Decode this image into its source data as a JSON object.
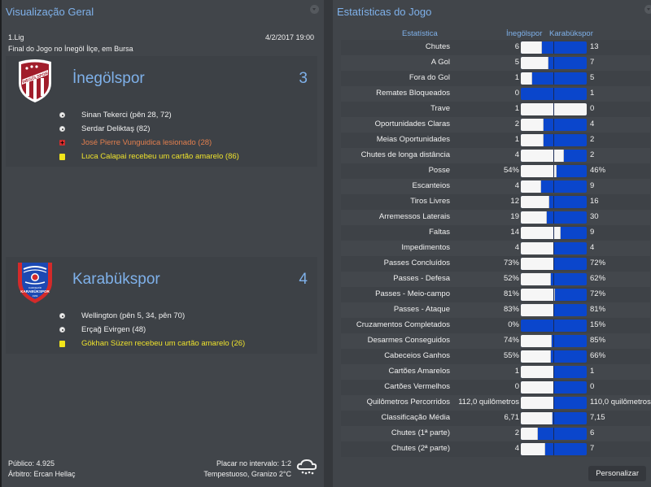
{
  "overview": {
    "title": "Visualização Geral",
    "competition": "1.Lig",
    "datetime": "4/2/2017 19:00",
    "venue_text": "Final do Jogo no İnegöl İlçe, em Bursa",
    "home": {
      "name": "İnegölspor",
      "score": "3",
      "crest_colors": {
        "primary": "#a11d2b",
        "secondary": "#ffffff"
      },
      "events": [
        {
          "type": "goal",
          "icon": "ball-icon",
          "text": "Sinan Tekerci (pên 28, 72)"
        },
        {
          "type": "goal",
          "icon": "ball-icon",
          "text": "Serdar Deliktaş (82)"
        },
        {
          "type": "injury",
          "icon": "injury-icon",
          "text": "José Pierre Vunguidica lesionado (28)"
        },
        {
          "type": "card",
          "icon": "yellow-card-icon",
          "text": "Luca Calapai recebeu um cartão amarelo (86)"
        }
      ]
    },
    "away": {
      "name": "Karabükspor",
      "score": "4",
      "crest_colors": {
        "primary": "#1c49b3",
        "secondary": "#d42a2a"
      },
      "events": [
        {
          "type": "goal",
          "icon": "ball-icon",
          "text": "Wellington (pên 5, 34, pên 70)"
        },
        {
          "type": "goal",
          "icon": "ball-icon",
          "text": "Erçağ Evirgen (48)"
        },
        {
          "type": "card",
          "icon": "yellow-card-icon",
          "text": "Gökhan Süzen recebeu um cartão amarelo (26)"
        }
      ]
    },
    "footer": {
      "attendance": "Público: 4.925",
      "referee": "Árbitro: Ercan Hellaç",
      "halftime": "Placar no intervalo: 1:2",
      "weather": "Tempestuoso, Granizo 2°C",
      "weather_icon": "hail-cloud-icon"
    }
  },
  "stats": {
    "title": "Estatísticas do Jogo",
    "col_stat": "Estatística",
    "col_home": "İnegölspor",
    "col_away": "Karabükspor",
    "colors": {
      "home_bar": "#f6f6f6",
      "away_bar": "#0a46cc"
    },
    "rows": [
      {
        "label": "Chutes",
        "home": "6",
        "away": "13",
        "home_share": 32
      },
      {
        "label": "A Gol",
        "home": "5",
        "away": "7",
        "home_share": 42
      },
      {
        "label": "Fora do Gol",
        "home": "1",
        "away": "5",
        "home_share": 17
      },
      {
        "label": "Remates Bloqueados",
        "home": "0",
        "away": "1",
        "home_share": 0
      },
      {
        "label": "Trave",
        "home": "1",
        "away": "0",
        "home_share": 100
      },
      {
        "label": "Oportunidades Claras",
        "home": "2",
        "away": "4",
        "home_share": 34
      },
      {
        "label": "Meias Oportunidades",
        "home": "1",
        "away": "2",
        "home_share": 34
      },
      {
        "label": "Chutes de longa distância",
        "home": "4",
        "away": "2",
        "home_share": 66
      },
      {
        "label": "Posse",
        "home": "54%",
        "away": "46%",
        "home_share": 54
      },
      {
        "label": "Escanteios",
        "home": "4",
        "away": "9",
        "home_share": 31
      },
      {
        "label": "Tiros Livres",
        "home": "12",
        "away": "16",
        "home_share": 43
      },
      {
        "label": "Arremessos Laterais",
        "home": "19",
        "away": "30",
        "home_share": 39
      },
      {
        "label": "Faltas",
        "home": "14",
        "away": "9",
        "home_share": 61
      },
      {
        "label": "Impedimentos",
        "home": "4",
        "away": "4",
        "home_share": 50
      },
      {
        "label": "Passes Concluídos",
        "home": "73%",
        "away": "72%",
        "home_share": 50
      },
      {
        "label": "Passes - Defesa",
        "home": "52%",
        "away": "62%",
        "home_share": 46
      },
      {
        "label": "Passes - Meio-campo",
        "home": "81%",
        "away": "72%",
        "home_share": 52
      },
      {
        "label": "Passes - Ataque",
        "home": "83%",
        "away": "81%",
        "home_share": 50
      },
      {
        "label": "Cruzamentos Completados",
        "home": "0%",
        "away": "15%",
        "home_share": 0
      },
      {
        "label": "Desarmes Conseguidos",
        "home": "74%",
        "away": "85%",
        "home_share": 47
      },
      {
        "label": "Cabeceios Ganhos",
        "home": "55%",
        "away": "66%",
        "home_share": 46
      },
      {
        "label": "Cartões Amarelos",
        "home": "1",
        "away": "1",
        "home_share": 50
      },
      {
        "label": "Cartões Vermelhos",
        "home": "0",
        "away": "0",
        "home_share": 50
      },
      {
        "label": "Quilômetros Percorridos",
        "home": "112,0 quilômetros",
        "away": "110,0 quilômetros",
        "home_share": 50
      },
      {
        "label": "Classificação Média",
        "home": "6,71",
        "away": "7,15",
        "home_share": 48
      },
      {
        "label": "Chutes (1ª parte)",
        "home": "2",
        "away": "6",
        "home_share": 26
      },
      {
        "label": "Chutes (2ª parte)",
        "home": "4",
        "away": "7",
        "home_share": 37
      }
    ],
    "customize_label": "Personalizar"
  }
}
